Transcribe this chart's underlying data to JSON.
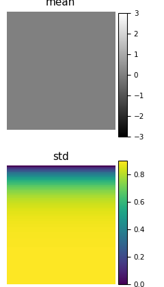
{
  "mean_shape": [
    100,
    100
  ],
  "mean_value": 0.0,
  "mean_cmap": "gray",
  "mean_vmin": -3,
  "mean_vmax": 3,
  "mean_title": "mean",
  "std_shape": [
    100,
    100
  ],
  "std_cmap": "viridis",
  "std_vmin": 0.0,
  "std_vmax": 0.9,
  "std_title": "std",
  "title_fontsize": 11,
  "figsize": [
    2.4,
    4.18
  ],
  "dpi": 100
}
